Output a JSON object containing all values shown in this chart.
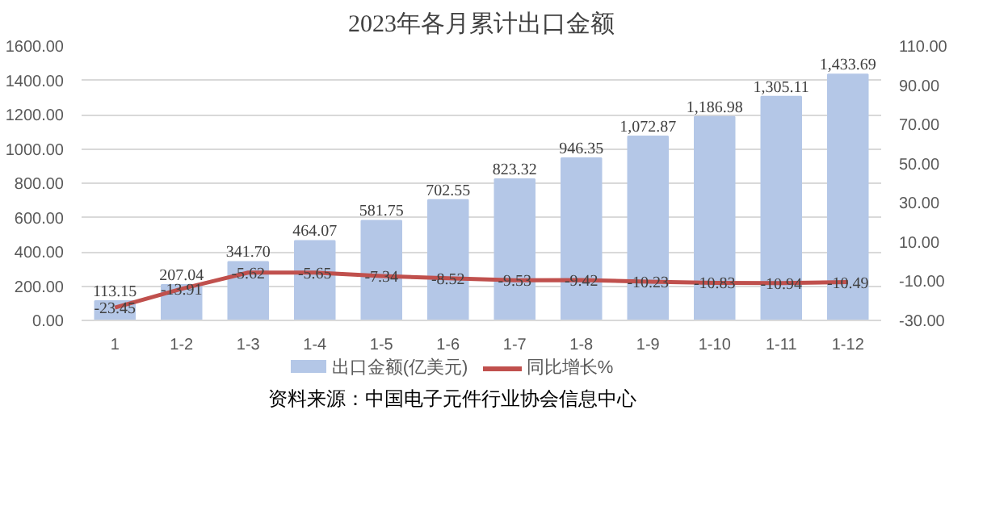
{
  "chart_data": {
    "type": "bar",
    "title": "2023年各月累计出口金额",
    "categories": [
      "1",
      "1-2",
      "1-3",
      "1-4",
      "1-5",
      "1-6",
      "1-7",
      "1-8",
      "1-9",
      "1-10",
      "1-11",
      "1-12"
    ],
    "series": [
      {
        "name": "出口金额(亿美元)",
        "color": "#b4c7e7",
        "values": [
          113.15,
          207.04,
          341.7,
          464.07,
          581.75,
          702.55,
          823.32,
          946.35,
          1072.87,
          1186.98,
          1305.11,
          1433.69
        ],
        "value_labels": [
          "113.15",
          "207.04",
          "341.70",
          "464.07",
          "581.75",
          "702.55",
          "823.32",
          "946.35",
          "1,072.87",
          "1,186.98",
          "1,305.11",
          "1,433.69"
        ]
      },
      {
        "name": "同比增长%",
        "type": "line",
        "axis": "y2",
        "color": "#c0504d",
        "values": [
          -23.45,
          -13.91,
          -5.62,
          -5.65,
          -7.34,
          -8.52,
          -9.53,
          -9.42,
          -10.23,
          -10.83,
          -10.94,
          -10.49
        ],
        "value_labels": [
          "-23.45",
          "-13.91",
          "-5.62",
          "-5.65",
          "-7.34",
          "-8.52",
          "-9.53",
          "-9.42",
          "-10.23",
          "-10.83",
          "-10.94",
          "-10.49"
        ]
      }
    ],
    "ylim": [
      0,
      1600
    ],
    "yticks": [
      {
        "value": 0,
        "label": "0.00"
      },
      {
        "value": 200,
        "label": "200.00"
      },
      {
        "value": 400,
        "label": "400.00"
      },
      {
        "value": 600,
        "label": "600.00"
      },
      {
        "value": 800,
        "label": "800.00"
      },
      {
        "value": 1000,
        "label": "1000.00"
      },
      {
        "value": 1200,
        "label": "1200.00"
      },
      {
        "value": 1400,
        "label": "1400.00"
      },
      {
        "value": 1600,
        "label": "1600.00"
      }
    ],
    "y2lim": [
      -30,
      110
    ],
    "y2ticks": [
      {
        "value": -30,
        "label": "-30.00"
      },
      {
        "value": -10,
        "label": "-10.00"
      },
      {
        "value": 10,
        "label": "10.00"
      },
      {
        "value": 30,
        "label": "30.00"
      },
      {
        "value": 50,
        "label": "50.00"
      },
      {
        "value": 70,
        "label": "70.00"
      },
      {
        "value": 90,
        "label": "90.00"
      },
      {
        "value": 110,
        "label": "110.00"
      }
    ],
    "grid": "y",
    "legend": "bottom",
    "marker": "none",
    "line_style": "solid",
    "annotations": [
      "资料来源：中国电子元件行业协会信息中心"
    ]
  }
}
